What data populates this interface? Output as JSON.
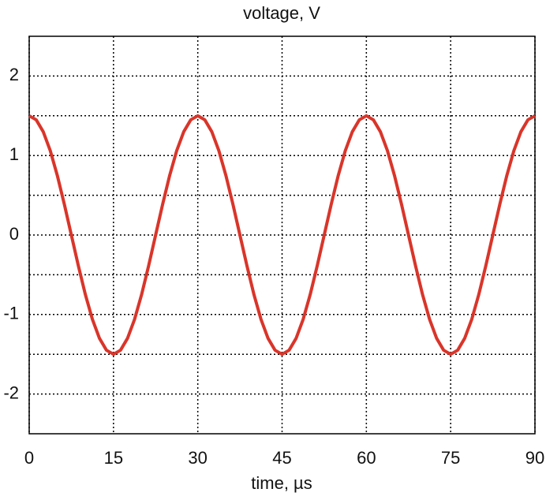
{
  "chart_data": {
    "type": "line",
    "title": "voltage, V",
    "xlabel": "time, µs",
    "x": [
      0,
      1.25,
      2.5,
      3.75,
      5,
      6.25,
      7.5,
      8.75,
      10,
      11.25,
      12.5,
      13.75,
      15,
      16.25,
      17.5,
      18.75,
      20,
      21.25,
      22.5,
      23.75,
      25,
      26.25,
      27.5,
      28.75,
      30,
      31.25,
      32.5,
      33.75,
      35,
      36.25,
      37.5,
      38.75,
      40,
      41.25,
      42.5,
      43.75,
      45,
      46.25,
      47.5,
      48.75,
      50,
      51.25,
      52.5,
      53.75,
      55,
      56.25,
      57.5,
      58.75,
      60,
      61.25,
      62.5,
      63.75,
      65,
      66.25,
      67.5,
      68.75,
      70,
      71.25,
      72.5,
      73.75,
      75,
      76.25,
      77.5,
      78.75,
      80,
      81.25,
      82.5,
      83.75,
      85,
      86.25,
      87.5,
      88.75,
      90
    ],
    "values": [
      1.5,
      1.449,
      1.299,
      1.061,
      0.75,
      0.388,
      0,
      -0.388,
      -0.75,
      -1.061,
      -1.299,
      -1.449,
      -1.5,
      -1.449,
      -1.299,
      -1.061,
      -0.75,
      -0.388,
      0,
      0.388,
      0.75,
      1.061,
      1.299,
      1.449,
      1.5,
      1.449,
      1.299,
      1.061,
      0.75,
      0.388,
      0,
      -0.388,
      -0.75,
      -1.061,
      -1.299,
      -1.449,
      -1.5,
      -1.449,
      -1.299,
      -1.061,
      -0.75,
      -0.388,
      0,
      0.388,
      0.75,
      1.061,
      1.299,
      1.449,
      1.5,
      1.449,
      1.299,
      1.061,
      0.75,
      0.388,
      0,
      -0.388,
      -0.75,
      -1.061,
      -1.299,
      -1.449,
      -1.5,
      -1.449,
      -1.299,
      -1.061,
      -0.75,
      -0.388,
      0,
      0.388,
      0.75,
      1.061,
      1.299,
      1.449,
      1.5
    ],
    "color": "#d9352a",
    "xlim": [
      0,
      90
    ],
    "xticks": [
      0,
      15,
      30,
      45,
      60,
      75,
      90
    ],
    "ylim": [
      -2.5,
      2.5
    ],
    "yticks": [
      -2,
      -1,
      0,
      1,
      2
    ],
    "yminorticks": [
      -1.5,
      -0.5,
      0.5,
      1.5
    ],
    "grid": true
  }
}
